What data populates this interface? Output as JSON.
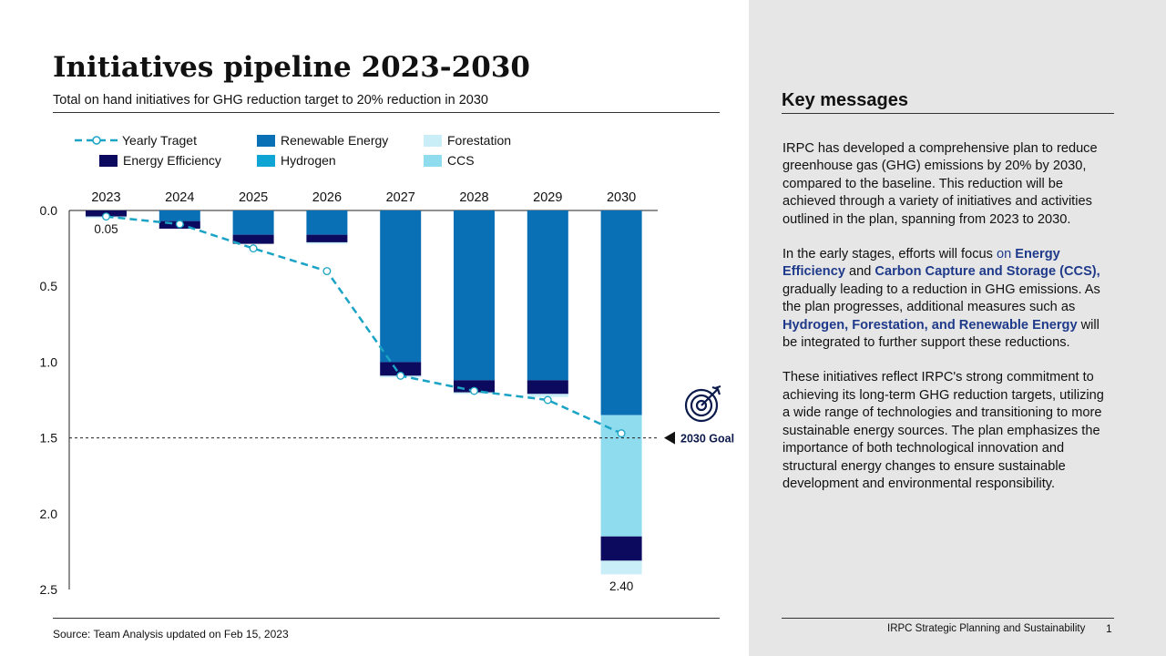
{
  "slide": {
    "title": "Initiatives pipeline 2023-2030",
    "subtitle": "Total on hand initiatives for GHG reduction target to 20% reduction in 2030",
    "source": "Source: Team Analysis updated on Feb 15, 2023",
    "footer": "IRPC Strategic Planning and Sustainability",
    "page_number": "1"
  },
  "legend": {
    "yearly_target": "Yearly Traget",
    "renewable": "Renewable Energy",
    "forestation": "Forestation",
    "energy_efficiency": "Energy Efficiency",
    "hydrogen": "Hydrogen",
    "ccs": "CCS"
  },
  "colors": {
    "renewable": "#0a70b5",
    "energy_efficiency": "#0b0a5e",
    "forestation": "#c9eef7",
    "hydrogen": "#0ea5d5",
    "ccs": "#8fdcef",
    "target_line": "#1aa3c4"
  },
  "chart_data": {
    "type": "bar",
    "stacked": true,
    "inverted_y": true,
    "categories": [
      "2023",
      "2024",
      "2025",
      "2026",
      "2027",
      "2028",
      "2029",
      "2030"
    ],
    "ylim": [
      0,
      2.5
    ],
    "yticks": [
      "0.0",
      "0.5",
      "1.0",
      "1.5",
      "2.0",
      "2.5"
    ],
    "ytick_values": [
      0,
      0.5,
      1.0,
      1.5,
      2.0,
      2.5
    ],
    "series": [
      {
        "name": "Renewable Energy",
        "key": "renewable",
        "values": [
          0.0,
          0.07,
          0.16,
          0.16,
          1.0,
          1.12,
          1.12,
          1.35
        ]
      },
      {
        "name": "CCS",
        "key": "ccs",
        "values": [
          0.0,
          0.0,
          0.0,
          0.0,
          0.0,
          0.0,
          0.0,
          0.8
        ]
      },
      {
        "name": "Energy Efficiency",
        "key": "energy_efficiency",
        "values": [
          0.04,
          0.05,
          0.06,
          0.05,
          0.09,
          0.08,
          0.09,
          0.16
        ]
      },
      {
        "name": "Hydrogen",
        "key": "hydrogen",
        "values": [
          0.0,
          0.0,
          0.0,
          0.0,
          0.0,
          0.0,
          0.0,
          0.0
        ]
      },
      {
        "name": "Forestation",
        "key": "forestation",
        "values": [
          0.01,
          0.0,
          0.0,
          0.01,
          0.01,
          0.01,
          0.02,
          0.09
        ]
      }
    ],
    "yearly_target": {
      "name": "Yearly Traget",
      "values": [
        0.04,
        0.09,
        0.25,
        0.4,
        1.09,
        1.19,
        1.25,
        1.47
      ]
    },
    "data_labels": {
      "first": "0.05",
      "last": "2.40"
    },
    "goal": {
      "value": 1.5,
      "label": "2030 Goal"
    }
  },
  "key_messages": {
    "title": "Key messages",
    "p1": "IRPC has developed a comprehensive plan to reduce greenhouse gas (GHG) emissions by 20% by 2030, compared to the baseline. This reduction will be achieved through a variety of initiatives and activities outlined in the plan, spanning from 2023 to 2030.",
    "p2_a": "In the early stages, efforts will focus ",
    "p2_on": "on ",
    "p2_b": "Energy Efficiency",
    "p2_c": " and ",
    "p2_d": "Carbon Capture and Storage (CCS),",
    "p2_e": " gradually leading to a reduction in GHG emissions. As the plan progresses, additional measures such as ",
    "p2_f": "Hydrogen, Forestation, and Renewable Energy",
    "p2_g": " will be integrated to further support these reductions.",
    "p3": "These initiatives reflect IRPC's strong commitment to achieving its long-term GHG reduction targets, utilizing a wide range of technologies and transitioning to more sustainable energy sources. The plan emphasizes the importance of both technological innovation and structural energy changes to ensure sustainable development and environmental responsibility."
  }
}
